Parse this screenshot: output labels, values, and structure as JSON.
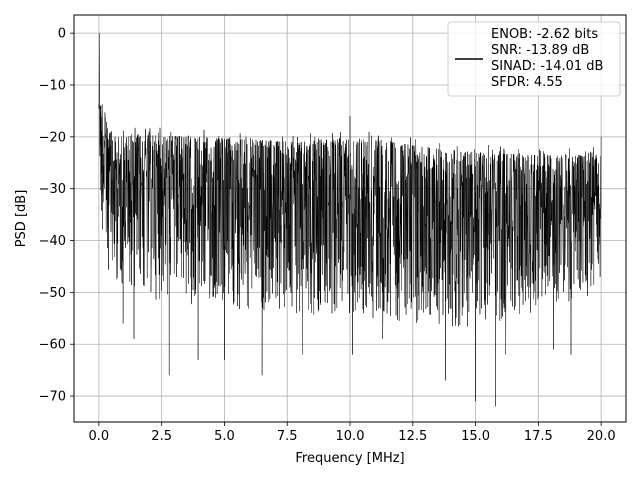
{
  "chart_data": {
    "type": "line",
    "title": "",
    "xlabel": "Frequency [MHz]",
    "ylabel": "PSD [dB]",
    "xlim": [
      -0.99,
      20.99
    ],
    "ylim": [
      -75.0,
      3.5
    ],
    "x_ticks": [
      0.0,
      2.5,
      5.0,
      7.5,
      10.0,
      12.5,
      15.0,
      17.5,
      20.0
    ],
    "x_tick_labels": [
      "0.0",
      "2.5",
      "5.0",
      "7.5",
      "10.0",
      "12.5",
      "15.0",
      "17.5",
      "20.0"
    ],
    "y_ticks": [
      0,
      -10,
      -20,
      -30,
      -40,
      -50,
      -60,
      -70
    ],
    "y_tick_labels": [
      "0",
      "−10",
      "−20",
      "−30",
      "−40",
      "−50",
      "−60",
      "−70"
    ],
    "grid": true,
    "legend_position": "upper-right",
    "line_color": "#000000",
    "series": [
      {
        "name": "ENOB: -2.62 bits\nSNR: -13.89 dB\nSINAD: -14.01 dB\nSFDR: 4.55",
        "legend_lines": [
          "ENOB: -2.62 bits",
          "SNR: -13.89 dB",
          "SINAD: -14.01 dB",
          "SFDR: 4.55"
        ],
        "x_range": [
          0.0,
          20.0
        ],
        "upper_envelope": [
          [
            0.0,
            0
          ],
          [
            0.05,
            -14
          ],
          [
            0.15,
            -12
          ],
          [
            0.3,
            -18
          ],
          [
            0.6,
            -20
          ],
          [
            1.5,
            -19.5
          ],
          [
            4,
            -20
          ],
          [
            8,
            -21
          ],
          [
            10,
            -20
          ],
          [
            14,
            -22.5
          ],
          [
            17,
            -23.5
          ],
          [
            20,
            -23.5
          ]
        ],
        "lower_envelope": [
          [
            0.0,
            -27
          ],
          [
            0.1,
            -37
          ],
          [
            0.3,
            -45
          ],
          [
            0.6,
            -48
          ],
          [
            2.5,
            -52
          ],
          [
            5,
            -53
          ],
          [
            10,
            -55
          ],
          [
            15,
            -57
          ],
          [
            20,
            -50
          ]
        ],
        "notable_peaks": [
          [
            0.02,
            0
          ],
          [
            0.05,
            -14
          ],
          [
            10.0,
            -16
          ],
          [
            20.0,
            -20
          ]
        ],
        "notable_dips": [
          [
            0.97,
            -56
          ],
          [
            1.4,
            -59
          ],
          [
            2.8,
            -66
          ],
          [
            3.95,
            -63
          ],
          [
            5.0,
            -63
          ],
          [
            6.5,
            -66
          ],
          [
            8.1,
            -62
          ],
          [
            10.1,
            -62
          ],
          [
            11.3,
            -59
          ],
          [
            13.8,
            -67
          ],
          [
            15.0,
            -71
          ],
          [
            15.8,
            -72
          ],
          [
            16.2,
            -62
          ],
          [
            18.1,
            -61
          ],
          [
            18.8,
            -62
          ]
        ]
      }
    ]
  }
}
